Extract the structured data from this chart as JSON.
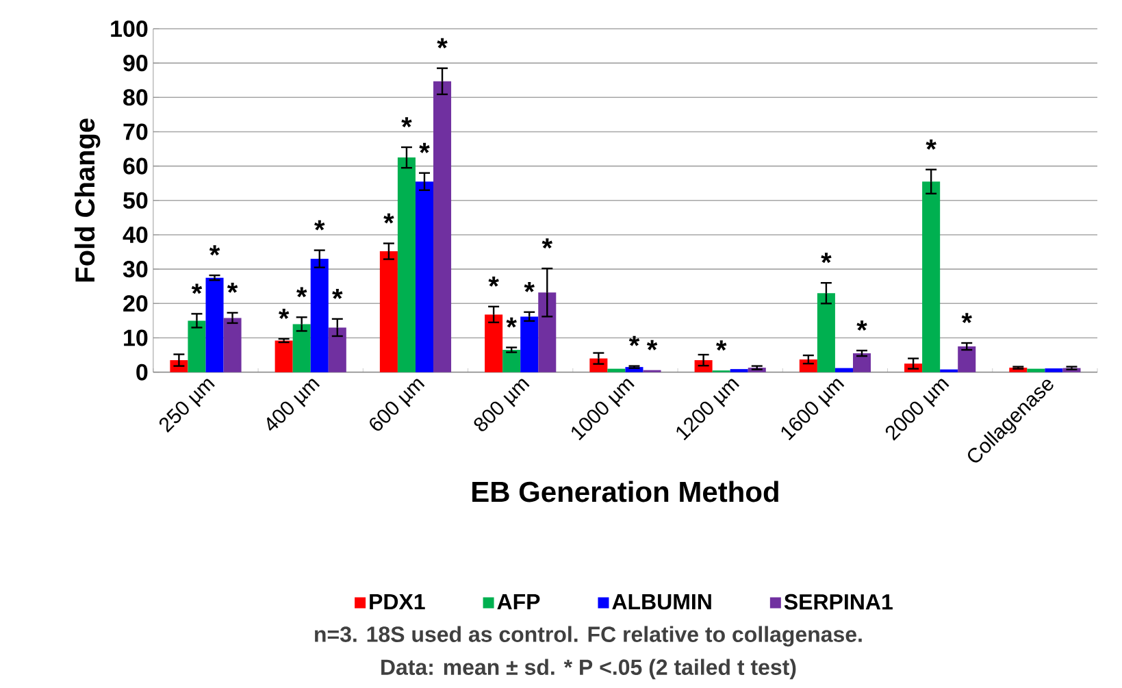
{
  "chart_data": {
    "type": "bar",
    "xlabel": "EB Generation Method",
    "ylabel": "Fold Change",
    "categories": [
      "250 µm",
      "400 µm",
      "600 µm",
      "800 µm",
      "1000 µm",
      "1200 µm",
      "1600 µm",
      "2000 µm",
      "Collagenase"
    ],
    "series": [
      {
        "name": "PDX1",
        "color": "#ff0000",
        "values": [
          3.5,
          9.2,
          35.2,
          16.8,
          4.0,
          3.5,
          3.7,
          2.5,
          1.3
        ],
        "errors": [
          1.7,
          0.5,
          2.3,
          2.3,
          1.6,
          1.6,
          1.2,
          1.5,
          0.3
        ],
        "value_labels": [
          null,
          "*",
          "*",
          "*",
          null,
          null,
          null,
          null,
          null
        ]
      },
      {
        "name": "AFP",
        "color": "#00b050",
        "values": [
          15,
          14,
          62.5,
          6.5,
          1.0,
          0.5,
          23,
          55.5,
          1.0
        ],
        "errors": [
          2,
          2,
          3,
          0.7,
          null,
          null,
          3,
          3.5,
          null
        ],
        "value_labels": [
          "*",
          "*",
          "*",
          "*",
          null,
          "*",
          "*",
          "*",
          null
        ]
      },
      {
        "name": "ALBUMIN",
        "color": "#0000ff",
        "values": [
          27.5,
          33,
          55.5,
          16.2,
          1.5,
          0.9,
          1.2,
          0.8,
          1.1
        ],
        "errors": [
          0.7,
          2.5,
          2.5,
          1.3,
          0.3,
          null,
          null,
          null,
          null
        ],
        "value_labels": [
          "*",
          "*",
          "*",
          "*",
          "*",
          null,
          null,
          null,
          null
        ]
      },
      {
        "name": "SERPINA1",
        "color": "#7030a0",
        "values": [
          15.8,
          13,
          84.7,
          23.2,
          0.6,
          1.3,
          5.5,
          7.5,
          1.2
        ],
        "errors": [
          1.5,
          2.5,
          3.8,
          7,
          null,
          0.5,
          0.8,
          1,
          0.4
        ],
        "value_labels": [
          "*",
          "*",
          "*",
          "*",
          "*",
          null,
          "*",
          "*",
          null
        ]
      }
    ],
    "ylim": [
      0,
      100
    ],
    "yticks": [
      0,
      10,
      20,
      30,
      40,
      50,
      60,
      70,
      80,
      90,
      100
    ],
    "grid": "y",
    "legend": "bottom",
    "annotations": [
      "n=3. 18S used as control. FC relative to collagenase.",
      "Data: mean ± sd. * P <.05 (2 tailed t test)"
    ]
  }
}
